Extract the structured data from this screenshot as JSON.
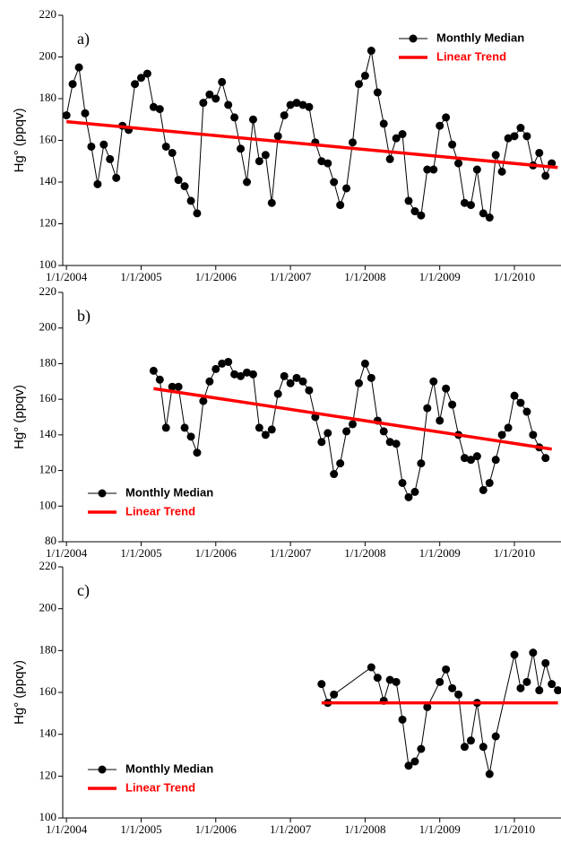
{
  "chart_data": [
    {
      "type": "line",
      "title": "a)",
      "y_label": "Hg° (ppqv)",
      "legend": "upper right",
      "xlim": [
        2003.95,
        2010.6
      ],
      "ylim": [
        100,
        220
      ],
      "xticks": [
        {
          "value": 2004,
          "label": "1/1/2004"
        },
        {
          "value": 2005,
          "label": "1/1/2005"
        },
        {
          "value": 2006,
          "label": "1/1/2006"
        },
        {
          "value": 2007,
          "label": "1/1/2007"
        },
        {
          "value": 2008,
          "label": "1/1/2008"
        },
        {
          "value": 2009,
          "label": "1/1/2009"
        },
        {
          "value": 2010,
          "label": "1/1/2010"
        }
      ],
      "yticks": [
        100,
        120,
        140,
        160,
        180,
        200,
        220
      ],
      "series": [
        {
          "name": "Monthly Median",
          "color": "#000000",
          "markers": true,
          "x": [
            2004,
            2004.083,
            2004.167,
            2004.25,
            2004.333,
            2004.417,
            2004.5,
            2004.583,
            2004.667,
            2004.75,
            2004.833,
            2004.917,
            2005,
            2005.083,
            2005.167,
            2005.25,
            2005.333,
            2005.417,
            2005.5,
            2005.583,
            2005.667,
            2005.75,
            2005.833,
            2005.917,
            2006,
            2006.083,
            2006.167,
            2006.25,
            2006.333,
            2006.417,
            2006.5,
            2006.583,
            2006.667,
            2006.75,
            2006.833,
            2006.917,
            2007,
            2007.083,
            2007.167,
            2007.25,
            2007.333,
            2007.417,
            2007.5,
            2007.583,
            2007.667,
            2007.75,
            2007.833,
            2007.917,
            2008,
            2008.083,
            2008.167,
            2008.25,
            2008.333,
            2008.417,
            2008.5,
            2008.583,
            2008.667,
            2008.75,
            2008.833,
            2008.917,
            2009,
            2009.083,
            2009.167,
            2009.25,
            2009.333,
            2009.417,
            2009.5,
            2009.583,
            2009.667,
            2009.75,
            2009.833,
            2009.917,
            2010,
            2010.083,
            2010.167,
            2010.25,
            2010.333,
            2010.417,
            2010.5
          ],
          "values": [
            172,
            187,
            195,
            173,
            157,
            139,
            158,
            151,
            142,
            167,
            165,
            187,
            190,
            192,
            176,
            175,
            157,
            154,
            141,
            138,
            131,
            125,
            178,
            182,
            180,
            188,
            177,
            171,
            156,
            140,
            170,
            150,
            153,
            130,
            162,
            172,
            177,
            178,
            177,
            176,
            159,
            150,
            149,
            140,
            129,
            137,
            159,
            187,
            191,
            203,
            183,
            168,
            151,
            161,
            163,
            131,
            126,
            124,
            146,
            146,
            167,
            171,
            158,
            149,
            130,
            129,
            146,
            125,
            123,
            153,
            145,
            161,
            162,
            166,
            162,
            148,
            154,
            143,
            149
          ]
        },
        {
          "name": "Linear Trend",
          "color": "#ff0000",
          "markers": false,
          "x": [
            2004,
            2010.58
          ],
          "values": [
            169,
            147
          ]
        }
      ]
    },
    {
      "type": "line",
      "title": "b)",
      "y_label": "Hg° (ppqv)",
      "legend": "lower left",
      "xlim": [
        2003.95,
        2010.6
      ],
      "ylim": [
        80,
        220
      ],
      "xticks": [
        {
          "value": 2004,
          "label": "1/1/2004"
        },
        {
          "value": 2005,
          "label": "1/1/2005"
        },
        {
          "value": 2006,
          "label": "1/1/2006"
        },
        {
          "value": 2007,
          "label": "1/1/2007"
        },
        {
          "value": 2008,
          "label": "1/1/2008"
        },
        {
          "value": 2009,
          "label": "1/1/2009"
        },
        {
          "value": 2010,
          "label": "1/1/2010"
        }
      ],
      "yticks": [
        80,
        100,
        120,
        140,
        160,
        180,
        200,
        220
      ],
      "series": [
        {
          "name": "Monthly Median",
          "color": "#000000",
          "markers": true,
          "x": [
            2005.167,
            2005.25,
            2005.333,
            2005.417,
            2005.5,
            2005.583,
            2005.667,
            2005.75,
            2005.833,
            2005.917,
            2006,
            2006.083,
            2006.167,
            2006.25,
            2006.333,
            2006.417,
            2006.5,
            2006.583,
            2006.667,
            2006.75,
            2006.833,
            2006.917,
            2007,
            2007.083,
            2007.167,
            2007.25,
            2007.333,
            2007.417,
            2007.5,
            2007.583,
            2007.667,
            2007.75,
            2007.833,
            2007.917,
            2008,
            2008.083,
            2008.167,
            2008.25,
            2008.333,
            2008.417,
            2008.5,
            2008.583,
            2008.667,
            2008.75,
            2008.833,
            2008.917,
            2009,
            2009.083,
            2009.167,
            2009.25,
            2009.333,
            2009.417,
            2009.5,
            2009.583,
            2009.667,
            2009.75,
            2009.833,
            2009.917,
            2010,
            2010.083,
            2010.167,
            2010.25,
            2010.333,
            2010.417
          ],
          "values": [
            176,
            171,
            144,
            167,
            167,
            144,
            139,
            130,
            159,
            170,
            177,
            180,
            181,
            174,
            173,
            175,
            174,
            144,
            140,
            143,
            163,
            173,
            169,
            172,
            170,
            165,
            150,
            136,
            141,
            118,
            124,
            142,
            146,
            169,
            180,
            172,
            148,
            142,
            136,
            135,
            113,
            105,
            108,
            124,
            155,
            170,
            148,
            166,
            157,
            140,
            127,
            126,
            128,
            109,
            113,
            126,
            140,
            144,
            162,
            158,
            153,
            140,
            133,
            127
          ]
        },
        {
          "name": "Linear Trend",
          "color": "#ff0000",
          "markers": false,
          "x": [
            2005.167,
            2010.5
          ],
          "values": [
            166,
            132
          ]
        }
      ]
    },
    {
      "type": "line",
      "title": "c)",
      "y_label": "Hg° (ppqv)",
      "legend": "lower left",
      "xlim": [
        2003.95,
        2010.6
      ],
      "ylim": [
        100,
        220
      ],
      "xticks": [
        {
          "value": 2004,
          "label": "1/1/2004"
        },
        {
          "value": 2005,
          "label": "1/1/2005"
        },
        {
          "value": 2006,
          "label": "1/1/2006"
        },
        {
          "value": 2007,
          "label": "1/1/2007"
        },
        {
          "value": 2008,
          "label": "1/1/2008"
        },
        {
          "value": 2009,
          "label": "1/1/2009"
        },
        {
          "value": 2010,
          "label": "1/1/2010"
        }
      ],
      "yticks": [
        100,
        120,
        140,
        160,
        180,
        200,
        220
      ],
      "series": [
        {
          "name": "Monthly Median",
          "color": "#000000",
          "markers": true,
          "x": [
            2007.417,
            2007.5,
            2007.583,
            2008.083,
            2008.167,
            2008.25,
            2008.333,
            2008.417,
            2008.5,
            2008.583,
            2008.667,
            2008.75,
            2008.833,
            2009,
            2009.083,
            2009.167,
            2009.25,
            2009.333,
            2009.417,
            2009.5,
            2009.583,
            2009.667,
            2009.75,
            2010,
            2010.083,
            2010.167,
            2010.25,
            2010.333,
            2010.417,
            2010.5,
            2010.583
          ],
          "values": [
            164,
            155,
            159,
            172,
            167,
            156,
            166,
            165,
            147,
            125,
            127,
            133,
            153,
            165,
            171,
            162,
            159,
            134,
            137,
            155,
            134,
            121,
            139,
            178,
            162,
            165,
            179,
            161,
            174,
            164,
            161
          ]
        },
        {
          "name": "Linear Trend",
          "color": "#ff0000",
          "markers": false,
          "x": [
            2007.417,
            2010.583
          ],
          "values": [
            155,
            155
          ]
        }
      ]
    }
  ]
}
